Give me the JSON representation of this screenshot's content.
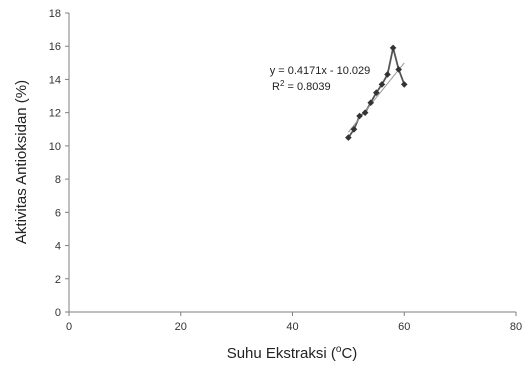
{
  "chart_data": {
    "type": "scatter",
    "xlabel": "Suhu Ekstraksi (",
    "xlabel_sup": "o",
    "xlabel_unit": "C)",
    "ylabel": "Aktivitas Antioksidan (%)",
    "xlim": [
      0,
      80
    ],
    "ylim": [
      0,
      18
    ],
    "xticks": [
      "0",
      "20",
      "40",
      "60",
      "80"
    ],
    "yticks": [
      "0",
      "2",
      "4",
      "6",
      "8",
      "10",
      "12",
      "14",
      "16",
      "18"
    ],
    "grid": false,
    "marker_color": "#333333",
    "series": [
      {
        "x": [
          50,
          51,
          52,
          53,
          54,
          55,
          56,
          57,
          58,
          59,
          60
        ],
        "y": [
          10.5,
          11.0,
          11.8,
          12.0,
          12.6,
          13.2,
          13.7,
          14.3,
          15.9,
          14.6,
          13.7
        ]
      }
    ],
    "trendline": {
      "slope": 0.4171,
      "intercept": -10.029,
      "x_range": [
        50,
        60
      ],
      "equation": "y = 0.4171x - 10.029",
      "r_squared_prefix": "R",
      "r_squared_sup": "2",
      "r_squared_value": " = 0.8039"
    }
  }
}
